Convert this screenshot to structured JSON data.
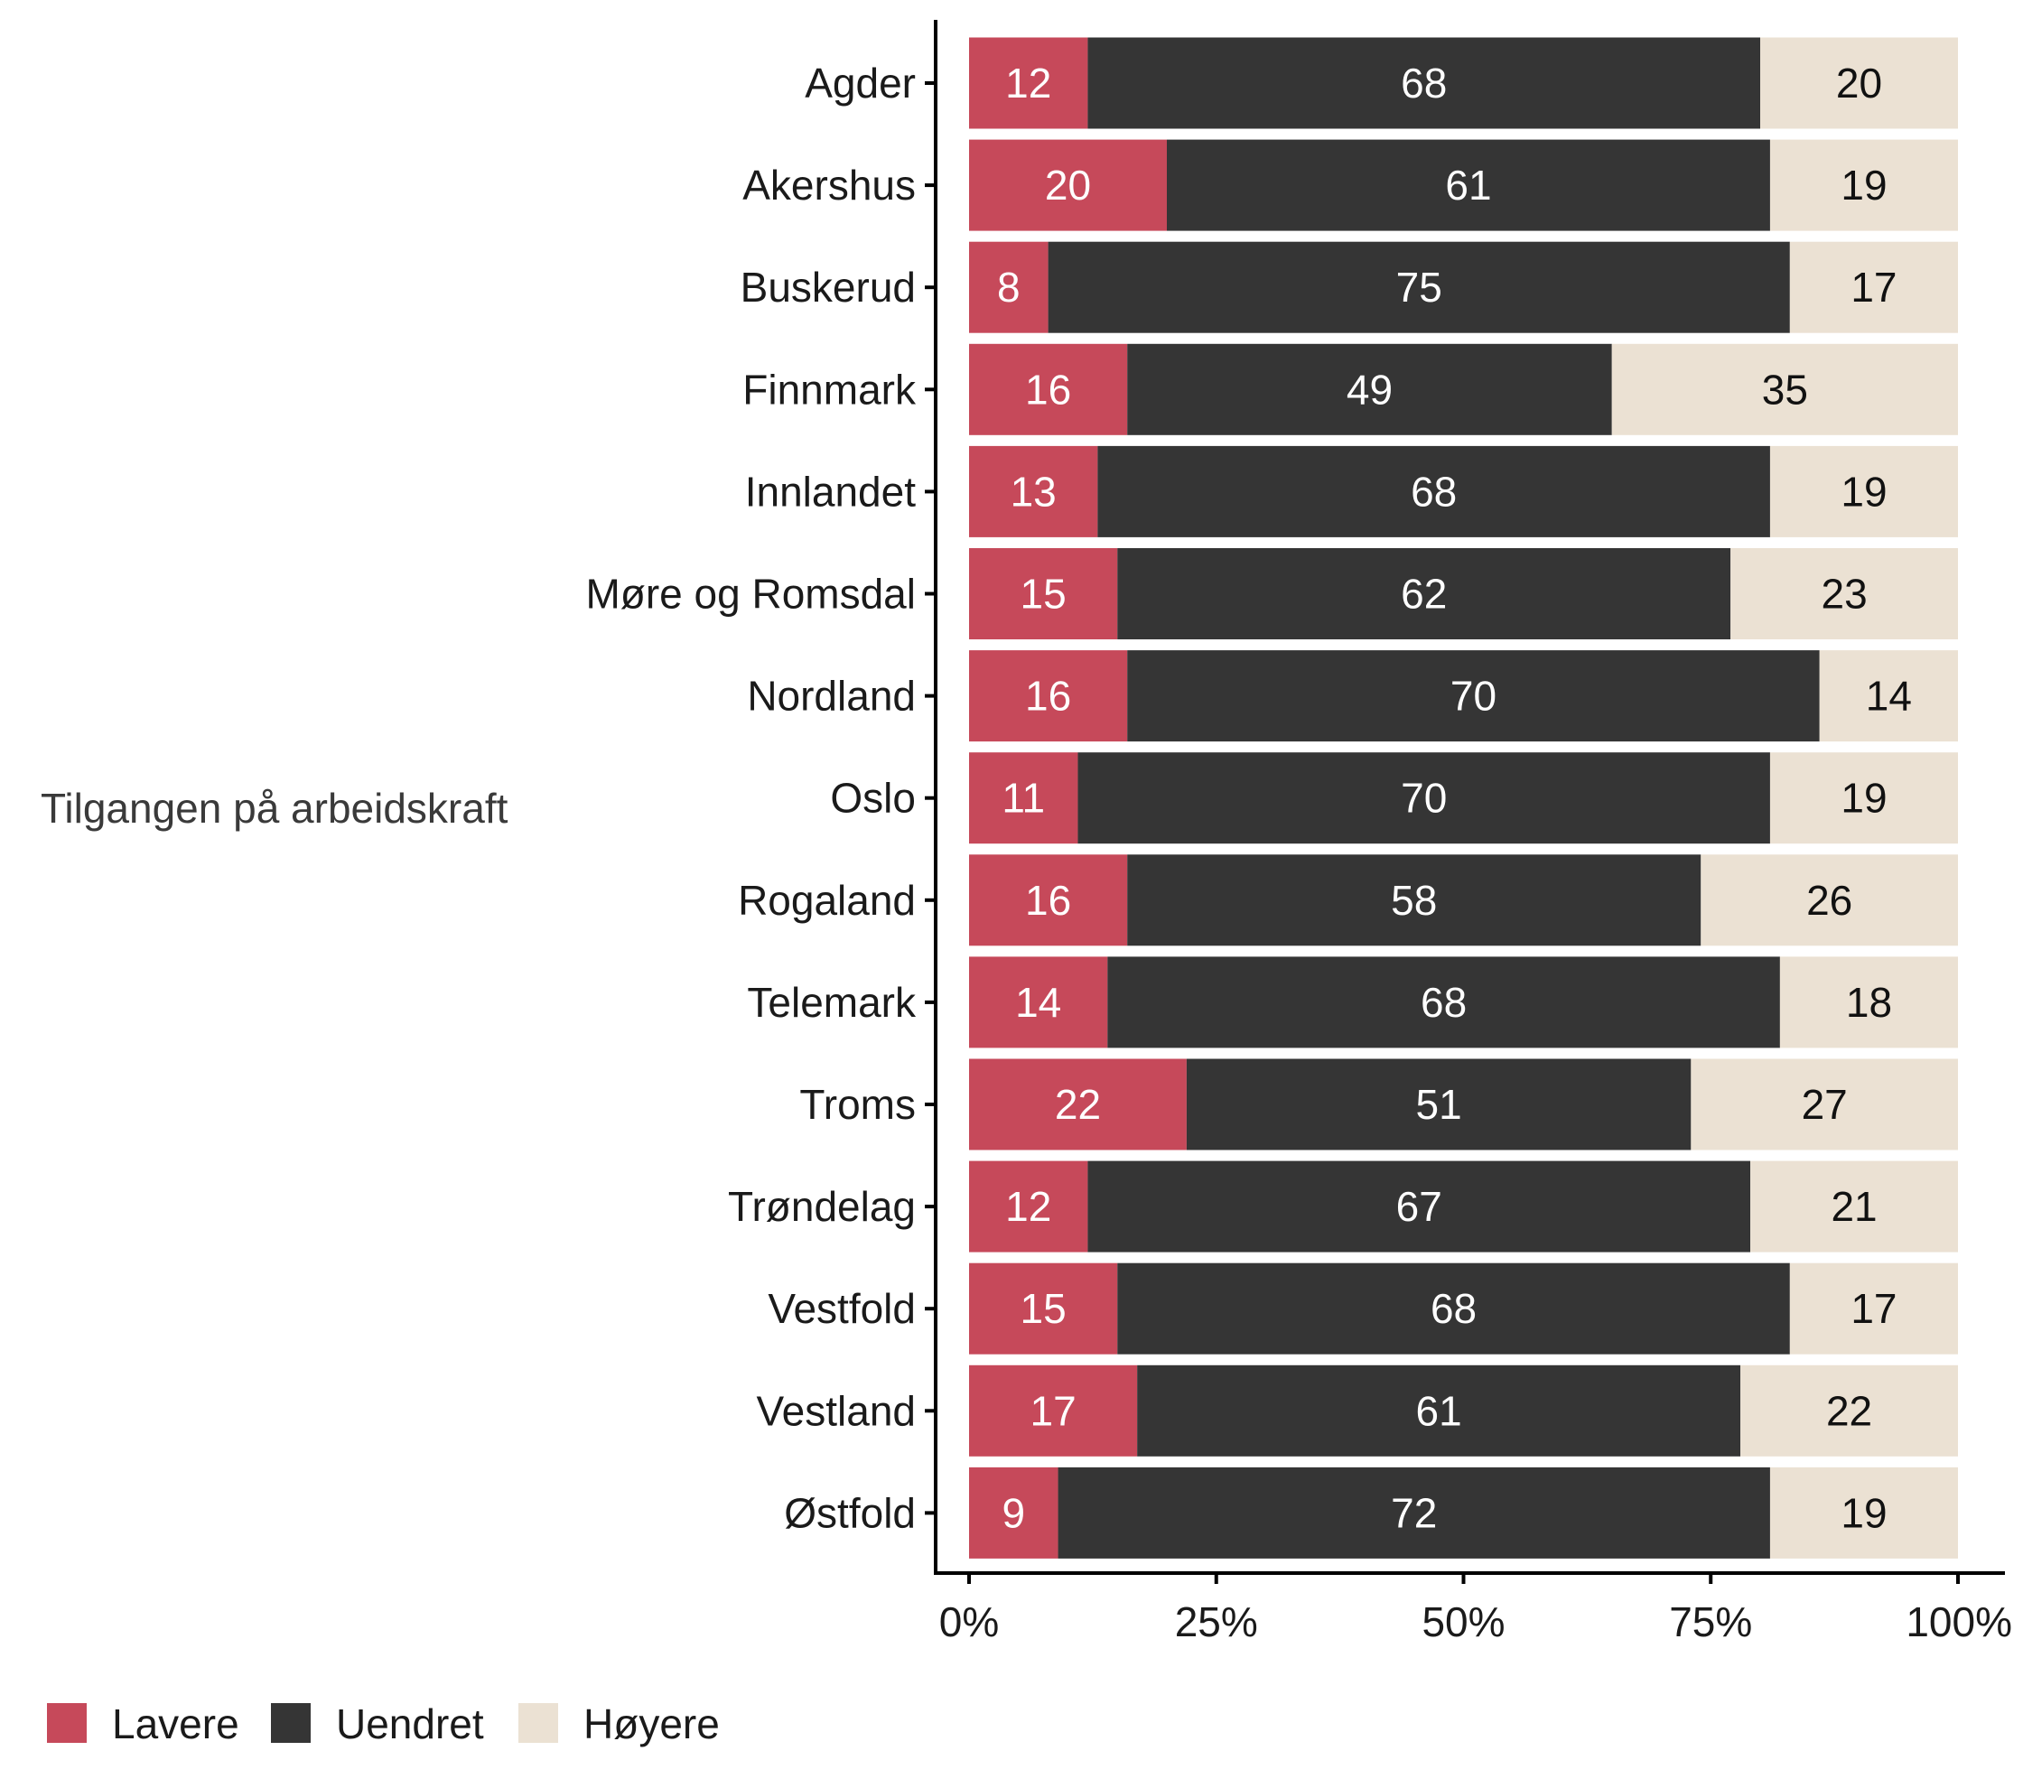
{
  "chart_data": {
    "type": "bar",
    "orientation": "horizontal",
    "stacked": true,
    "ylabel": "Tilgangen på arbeidskraft",
    "xlabel": "",
    "xlim": [
      0,
      100
    ],
    "x_ticks": [
      "0%",
      "25%",
      "50%",
      "75%",
      "100%"
    ],
    "x_tick_values": [
      0,
      25,
      50,
      75,
      100
    ],
    "legend_position": "bottom-left",
    "categories": [
      "Agder",
      "Akershus",
      "Buskerud",
      "Finnmark",
      "Innlandet",
      "Møre og Romsdal",
      "Nordland",
      "Oslo",
      "Rogaland",
      "Telemark",
      "Troms",
      "Trøndelag",
      "Vestfold",
      "Vestland",
      "Østfold"
    ],
    "series": [
      {
        "name": "Lavere",
        "color": "#c6495a",
        "label_color": "#ffffff",
        "values": [
          12,
          20,
          8,
          16,
          13,
          15,
          16,
          11,
          16,
          14,
          22,
          12,
          15,
          17,
          9
        ]
      },
      {
        "name": "Uendret",
        "color": "#353535",
        "label_color": "#ffffff",
        "values": [
          68,
          61,
          75,
          49,
          68,
          62,
          70,
          70,
          58,
          68,
          51,
          67,
          68,
          61,
          72
        ]
      },
      {
        "name": "Høyere",
        "color": "#ebe1d3",
        "label_color": "#111111",
        "values": [
          20,
          19,
          17,
          35,
          19,
          23,
          14,
          19,
          26,
          18,
          27,
          21,
          17,
          22,
          19
        ]
      }
    ]
  }
}
